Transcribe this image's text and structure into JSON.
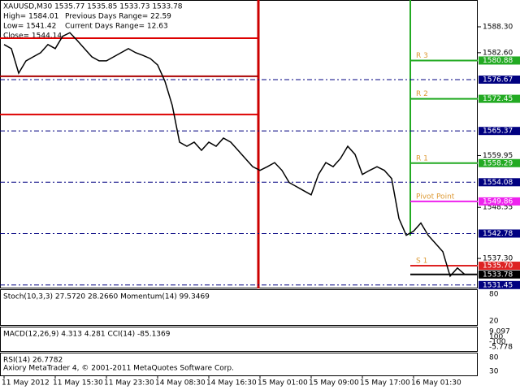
{
  "chart_data": {
    "type": "line",
    "title": "XAUUSD,M30  1535.77 1535.85 1533.73 1533.78",
    "info": [
      [
        "High= 1584.01",
        "Previous Days Range= 22.59"
      ],
      [
        "Low= 1541.42",
        "Current Days Range= 12.63"
      ],
      [
        "Close= 1544.14"
      ]
    ],
    "categories": [
      "11 May 2012",
      null,
      null,
      null,
      null,
      null,
      null,
      "11 May 15:30",
      null,
      null,
      null,
      null,
      null,
      null,
      "11 May 23:30",
      null,
      null,
      null,
      null,
      null,
      null,
      "14 May 08:30",
      null,
      null,
      null,
      null,
      null,
      null,
      "14 May 16:30",
      null,
      null,
      null,
      null,
      null,
      null,
      "15 May 01:00",
      null,
      null,
      null,
      null,
      null,
      null,
      "15 May 09:00",
      null,
      null,
      null,
      null,
      null,
      null,
      "15 May 17:00",
      null,
      null,
      null,
      null,
      null,
      null,
      "16 May 01:30",
      null,
      null,
      null,
      null,
      null,
      null,
      null
    ],
    "values": [
      1584.4,
      1583.5,
      1578.1,
      1580.8,
      1581.7,
      1582.6,
      1584.4,
      1583.5,
      1586.2,
      1587.0,
      1585.3,
      1583.5,
      1581.7,
      1580.8,
      1580.8,
      1581.7,
      1582.6,
      1583.5,
      1582.6,
      1582.0,
      1581.3,
      1579.9,
      1576.3,
      1571.0,
      1562.9,
      1562.0,
      1562.9,
      1561.1,
      1562.9,
      1562.0,
      1563.8,
      1562.9,
      1561.1,
      1559.3,
      1557.5,
      1556.7,
      1557.5,
      1558.4,
      1556.7,
      1554.0,
      1553.1,
      1552.2,
      1551.3,
      1555.8,
      1558.4,
      1557.5,
      1559.3,
      1562.0,
      1560.2,
      1555.8,
      1556.7,
      1557.5,
      1556.7,
      1554.9,
      1546.1,
      1542.4,
      1543.3,
      1545.1,
      1542.4,
      1540.6,
      1538.8,
      1533.4,
      1535.2,
      1533.78
    ],
    "color": "#000000",
    "ylim": [
      1530.7,
      1594.2
    ],
    "yticks": [
      {
        "value": 1588.3,
        "label": "1588.30"
      },
      {
        "value": 1582.6,
        "label": "1582.60"
      },
      {
        "value": 1559.95,
        "label": "1559.95"
      },
      {
        "value": 1548.55,
        "label": "1548.55"
      },
      {
        "value": 1537.3,
        "label": "1537.30"
      }
    ],
    "levels": [
      {
        "value": 1580.88,
        "label": "1580.88",
        "color": "#22aa22",
        "name": "R 3"
      },
      {
        "value": 1576.67,
        "label": "1576.67",
        "color": "#000080"
      },
      {
        "value": 1572.45,
        "label": "1572.45",
        "color": "#22aa22",
        "name": "R 2"
      },
      {
        "value": 1565.37,
        "label": "1565.37",
        "color": "#000080"
      },
      {
        "value": 1558.29,
        "label": "1558.29",
        "color": "#22aa22",
        "name": "R 1"
      },
      {
        "value": 1554.08,
        "label": "1554.08",
        "color": "#000080"
      },
      {
        "value": 1549.86,
        "label": "1549.86",
        "color": "#ee22ee",
        "name": "Pivot Point"
      },
      {
        "value": 1542.78,
        "label": "1542.78",
        "color": "#000080"
      },
      {
        "value": 1535.7,
        "label": "1535.70",
        "color": "#dd2222",
        "name": "S 1"
      },
      {
        "value": 1533.78,
        "label": "1533.78",
        "color": "#000000"
      },
      {
        "value": 1531.45,
        "label": "1531.45",
        "color": "#000080"
      }
    ],
    "day_levels": [
      {
        "value": 1585.8,
        "color": "#dd0000"
      },
      {
        "value": 1577.4,
        "color": "#aa0000"
      },
      {
        "value": 1569.0,
        "color": "#dd0000"
      }
    ],
    "panels": [
      {
        "title": "Stoch(10,3,3) 27.5720 28.2660 Momentum(14) 99.3469",
        "ticks": [
          "80",
          "20"
        ]
      },
      {
        "title": "MACD(12,26,9) 4.313 4.281 CCI(14) -85.1369",
        "ticks": [
          "9.097",
          "100",
          "-100",
          "-5.778"
        ]
      },
      {
        "title": "RSI(14) 26.7782",
        "ticks": [
          "80",
          "30"
        ]
      }
    ],
    "footer": "Axiory MetaTrader 4, © 2001-2011 MetaQuotes Software Corp."
  }
}
